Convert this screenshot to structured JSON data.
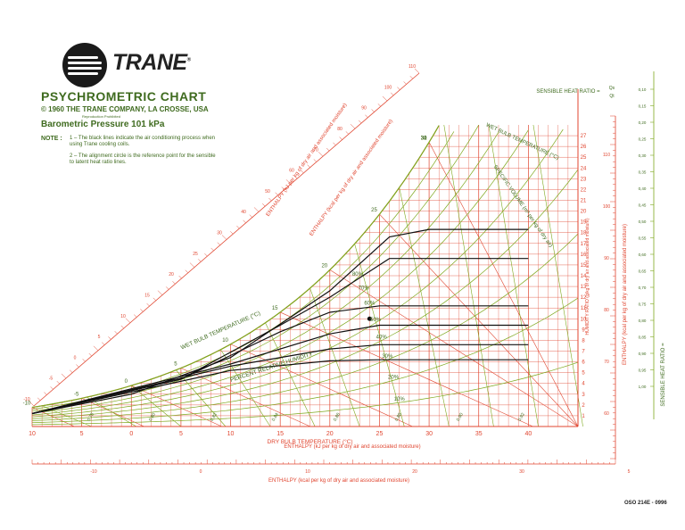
{
  "brand": {
    "name": "TRANE",
    "trademark": "®"
  },
  "header": {
    "title": "PSYCHROMETRIC CHART",
    "copyright": "© 1960 THE TRANE COMPANY, LA CROSSE, USA",
    "reproduction": "Reproduction Prohibited",
    "pressure": "Barometric Pressure 101 kPa",
    "note_label": "NOTE :",
    "note_1": "1 – The black lines indicate the air conditioning process when using Trane cooling coils.",
    "note_2": "2 – The alignment circle is the reference point for the sensible to latent heat ratio lines."
  },
  "doc_code": "OSO 214E - 0996",
  "colors": {
    "grid": "#e0452f",
    "humidity": "#7ea81e",
    "process": "#111111",
    "text": "#3f6b1f"
  },
  "chart_data": {
    "type": "line",
    "title": "PSYCHROMETRIC CHART",
    "xlabel": "DRY BULB TEMPERATURE (°C)",
    "ylabel": "HUMIDITY RATIO (g/kg of dry air and associated moisture)",
    "xlim": [
      -10,
      45
    ],
    "ylim": [
      0,
      28
    ],
    "x_ticks": [
      "10",
      "5",
      "0",
      "5",
      "10",
      "15",
      "20",
      "25",
      "30",
      "35",
      "40"
    ],
    "y_ticks": [
      1,
      2,
      3,
      4,
      5,
      6,
      7,
      8,
      9,
      10,
      11,
      12,
      13,
      14,
      15,
      16,
      17,
      18,
      19,
      20,
      21,
      22,
      23,
      24,
      25,
      26,
      27
    ],
    "relative_humidity_pct": [
      10,
      20,
      30,
      40,
      50,
      60,
      70,
      80,
      90,
      100
    ],
    "rh_labels_percent": [
      "10%",
      "20%",
      "30%",
      "40%",
      "50%",
      "60%",
      "70%",
      "80%"
    ],
    "wet_bulb_lines_c": [
      -10,
      -5,
      0,
      5,
      10,
      15,
      20,
      25,
      30
    ],
    "wet_bulb_labels": [
      "-10",
      "-5",
      "0",
      "5",
      "10",
      "15",
      "20",
      "25",
      "30",
      "31",
      "32",
      "33"
    ],
    "specific_volume_labels": [
      "0,78",
      "0,80",
      "0,82",
      "0,84",
      "0,86",
      "0,88",
      "0,90",
      "0,92"
    ],
    "shr_labels": [
      "0,10",
      "0,15",
      "0,20",
      "0,25",
      "0,30",
      "0,35",
      "0,40",
      "0,45",
      "0,50",
      "0,55",
      "0,60",
      "0,65",
      "0,70",
      "0,75",
      "0,80",
      "0,85",
      "0,90",
      "0,95",
      "1,00"
    ],
    "enthalpy_left_labels": [
      "-10",
      "-5",
      "0",
      "5",
      "10",
      "15",
      "20",
      "25",
      "30",
      "40",
      "50",
      "60",
      "70",
      "80",
      "90",
      "100",
      "110"
    ],
    "enthalpy_right_labels": [
      "60",
      "70",
      "80",
      "90",
      "100",
      "110"
    ],
    "enthalpy_bottom_labels": [
      "-10",
      "0",
      "10",
      "20",
      "30",
      "5"
    ],
    "process_curves": [
      {
        "name": "",
        "points": [
          [
            -10,
            1.2
          ],
          [
            0,
            3.0
          ],
          [
            10,
            6.4
          ],
          [
            20,
            12.6
          ],
          [
            26,
            17.6
          ],
          [
            30,
            18.3
          ],
          [
            40,
            18.3
          ]
        ]
      },
      {
        "name": "",
        "points": [
          [
            -10,
            1.2
          ],
          [
            5,
            4.4
          ],
          [
            15,
            9.4
          ],
          [
            20,
            12.0
          ],
          [
            26,
            15.6
          ],
          [
            40,
            15.6
          ]
        ]
      },
      {
        "name": "",
        "points": [
          [
            -10,
            1.2
          ],
          [
            5,
            4.4
          ],
          [
            15,
            8.8
          ],
          [
            20,
            10.6
          ],
          [
            25,
            11.2
          ],
          [
            40,
            11.2
          ]
        ]
      },
      {
        "name": "",
        "points": [
          [
            -10,
            1.2
          ],
          [
            10,
            5.8
          ],
          [
            20,
            8.6
          ],
          [
            25,
            9.4
          ],
          [
            40,
            9.4
          ]
        ]
      },
      {
        "name": "",
        "points": [
          [
            -10,
            1.2
          ],
          [
            10,
            5.6
          ],
          [
            20,
            7.2
          ],
          [
            25,
            7.6
          ],
          [
            40,
            7.6
          ]
        ]
      },
      {
        "name": "",
        "points": [
          [
            -10,
            1.2
          ],
          [
            10,
            5.2
          ],
          [
            20,
            6.1
          ],
          [
            25,
            6.2
          ],
          [
            40,
            6.2
          ]
        ]
      }
    ],
    "alignment_circle": {
      "x": 24,
      "y": 10
    },
    "labels": {
      "wet_bulb": "WET BULB TEMPERATURE (°C)",
      "relative_humidity": "PERCENT RELATIVE HUMIDITY",
      "specific_volume": "SPECIFIC VOLUME (m³ per kg of dry air)",
      "enthalpy_kj": "ENTHALPY (kJ per kg of dry air and associated moisture)",
      "enthalpy_kcal": "ENTHALPY (kcal per kg of dry air and associated moisture)",
      "shr": "SENSIBLE HEAT RATIO =",
      "shr_num": "Qs",
      "shr_den": "Qt",
      "vapor": "VAPOR PRESSURE",
      "dew": "DEW POINT"
    }
  }
}
